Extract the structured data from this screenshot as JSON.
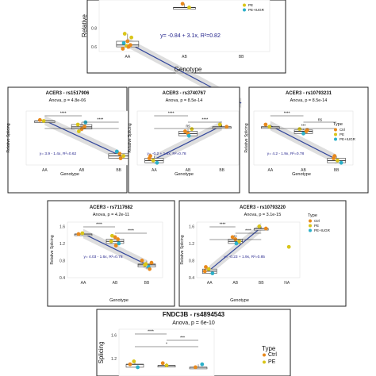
{
  "chart_data": [
    {
      "type": "scatter",
      "title": "",
      "subtitle": "",
      "equation": "y= -0.84 + 3.1x,  R²=0.82",
      "xlabel": "Genotype",
      "ylabel": "Relative",
      "categories": [
        "AA",
        "AB",
        "BB"
      ],
      "yticks": [
        "0.6",
        "0.8"
      ],
      "ylim": [
        0.55,
        1.1
      ],
      "legend": {
        "position": "right",
        "title": "",
        "entries": [
          "PE",
          "PE+IUGR"
        ]
      },
      "boxes": [
        {
          "category": "AA",
          "q1": 0.59,
          "median": 0.62,
          "q3": 0.67,
          "whisker_low": 0.58,
          "whisker_high": 0.72
        }
      ],
      "trend": {
        "from": [
          "AA",
          0.63
        ],
        "to": [
          "AB",
          1.07
        ]
      },
      "points": [
        {
          "x": "AA",
          "y": 0.58,
          "type": "Ctrl"
        },
        {
          "x": "AA",
          "y": 0.61,
          "type": "PE"
        },
        {
          "x": "AA",
          "y": 0.62,
          "type": "Ctrl"
        },
        {
          "x": "AA",
          "y": 0.64,
          "type": "PE+IUGR"
        },
        {
          "x": "AA",
          "y": 0.66,
          "type": "Ctrl"
        },
        {
          "x": "AA",
          "y": 0.7,
          "type": "PE"
        },
        {
          "x": "AA",
          "y": 0.74,
          "type": "PE"
        },
        {
          "x": "AA",
          "y": 0.6,
          "type": "Ctrl"
        },
        {
          "x": "AB",
          "y": 1.02,
          "type": "PE"
        },
        {
          "x": "AB",
          "y": 1.06,
          "type": "Ctrl"
        }
      ]
    },
    {
      "type": "scatter",
      "title": "ACER3 - rs1517906",
      "subtitle": "Anova, p = 4.8e-06",
      "equation": "y= 3.9 - 1.4x,  R²=0.62",
      "xlabel": "Genotype",
      "ylabel": "Relative Splicing",
      "categories": [
        "AA",
        "AB",
        "BB"
      ],
      "significance": [
        "****",
        "****",
        "**"
      ],
      "points": [
        {
          "x": "AA",
          "y": 1.4,
          "type": "Ctrl"
        },
        {
          "x": "AA",
          "y": 1.38,
          "type": "PE"
        },
        {
          "x": "AB",
          "y": 1.25,
          "type": "Ctrl"
        },
        {
          "x": "AB",
          "y": 1.3,
          "type": "PE"
        },
        {
          "x": "AB",
          "y": 1.2,
          "type": "Ctrl"
        },
        {
          "x": "AB",
          "y": 1.35,
          "type": "PE+IUGR"
        },
        {
          "x": "AB",
          "y": 1.15,
          "type": "PE"
        },
        {
          "x": "BB",
          "y": 0.65,
          "type": "Ctrl"
        },
        {
          "x": "BB",
          "y": 0.6,
          "type": "PE"
        },
        {
          "x": "BB",
          "y": 0.7,
          "type": "PE+IUGR"
        },
        {
          "x": "BB",
          "y": 0.55,
          "type": "Ctrl"
        }
      ]
    },
    {
      "type": "scatter",
      "title": "ACER3 - rs3740767",
      "subtitle": "Anova, p = 8.5e-14",
      "equation": "y= -0.2 + 1.6x,  R²=0.78",
      "xlabel": "Genotype",
      "ylabel": "Relative Splicing",
      "categories": [
        "AA",
        "AB",
        "BB"
      ],
      "significance": [
        "****",
        "****",
        "ns"
      ],
      "points": [
        {
          "x": "AA",
          "y": 0.55,
          "type": "Ctrl"
        },
        {
          "x": "AA",
          "y": 0.5,
          "type": "PE"
        },
        {
          "x": "AA",
          "y": 0.45,
          "type": "PE+IUGR"
        },
        {
          "x": "AA",
          "y": 0.6,
          "type": "Ctrl"
        },
        {
          "x": "AB",
          "y": 1.1,
          "type": "Ctrl"
        },
        {
          "x": "AB",
          "y": 1.2,
          "type": "PE"
        },
        {
          "x": "AB",
          "y": 1.15,
          "type": "Ctrl"
        },
        {
          "x": "AB",
          "y": 1.05,
          "type": "PE+IUGR"
        },
        {
          "x": "BB",
          "y": 1.25,
          "type": "Ctrl"
        },
        {
          "x": "BB",
          "y": 1.3,
          "type": "PE"
        }
      ]
    },
    {
      "type": "scatter",
      "title": "ACER3 - rs10793231",
      "subtitle": "Anova, p = 8.5e-14",
      "equation": "y= 4.2 - 1.9x,  R²=0.78",
      "xlabel": "Genotype",
      "ylabel": "Relative Splicing",
      "categories": [
        "AA",
        "AB",
        "BB"
      ],
      "significance": [
        "****",
        "ns",
        "***"
      ],
      "legend": {
        "position": "right",
        "title": "Type",
        "entries": [
          "Ctrl",
          "PE",
          "PE+IUGR"
        ]
      },
      "points": [
        {
          "x": "AA",
          "y": 1.3,
          "type": "Ctrl"
        },
        {
          "x": "AA",
          "y": 1.25,
          "type": "PE"
        },
        {
          "x": "AB",
          "y": 1.15,
          "type": "Ctrl"
        },
        {
          "x": "AB",
          "y": 1.2,
          "type": "PE"
        },
        {
          "x": "AB",
          "y": 1.1,
          "type": "PE+IUGR"
        },
        {
          "x": "AB",
          "y": 1.18,
          "type": "Ctrl"
        },
        {
          "x": "BB",
          "y": 0.55,
          "type": "Ctrl"
        },
        {
          "x": "BB",
          "y": 0.5,
          "type": "PE"
        },
        {
          "x": "BB",
          "y": 0.45,
          "type": "PE+IUGR"
        },
        {
          "x": "BB",
          "y": 0.6,
          "type": "Ctrl"
        }
      ]
    },
    {
      "type": "scatter",
      "title": "ACER3 - rs7117682",
      "subtitle": "Anova, p = 4.2e-11",
      "equation": "y= 4.03 - 1.6x,  R²=0.78",
      "xlabel": "Genotype",
      "ylabel": "Relative Splicing",
      "categories": [
        "AA",
        "AB",
        "BB"
      ],
      "yticks": [
        "0.4",
        "0.8",
        "1.2",
        "1.6"
      ],
      "ylim": [
        0.4,
        1.7
      ],
      "significance": [
        "****",
        "****"
      ],
      "points": [
        {
          "x": "AA",
          "y": 1.42,
          "type": "Ctrl"
        },
        {
          "x": "AA",
          "y": 1.44,
          "type": "PE"
        },
        {
          "x": "AB",
          "y": 1.3,
          "type": "Ctrl"
        },
        {
          "x": "AB",
          "y": 1.25,
          "type": "PE"
        },
        {
          "x": "AB",
          "y": 1.35,
          "type": "Ctrl"
        },
        {
          "x": "AB",
          "y": 1.2,
          "type": "PE+IUGR"
        },
        {
          "x": "AB",
          "y": 1.38,
          "type": "PE"
        },
        {
          "x": "AB",
          "y": 1.15,
          "type": "Ctrl"
        },
        {
          "x": "BB",
          "y": 0.75,
          "type": "Ctrl"
        },
        {
          "x": "BB",
          "y": 0.7,
          "type": "PE"
        },
        {
          "x": "BB",
          "y": 0.65,
          "type": "PE+IUGR"
        },
        {
          "x": "BB",
          "y": 0.8,
          "type": "Ctrl"
        },
        {
          "x": "BB",
          "y": 0.72,
          "type": "PE"
        },
        {
          "x": "BB",
          "y": 0.6,
          "type": "Ctrl"
        }
      ]
    },
    {
      "type": "scatter",
      "title": "ACER3 - rs10793220",
      "subtitle": "Anova, p = 3.1e-15",
      "equation": "y= -0.23 + 1.9x,  R²=0.85",
      "xlabel": "Genotype",
      "ylabel": "Relative Splicing",
      "categories": [
        "AA",
        "AB",
        "BB",
        "NA"
      ],
      "yticks": [
        "0.4",
        "0.8",
        "1.2",
        "1.6"
      ],
      "ylim": [
        0.4,
        1.7
      ],
      "significance": [
        "****",
        "****",
        "**"
      ],
      "legend": {
        "position": "right",
        "title": "Type",
        "entries": [
          "Ctrl",
          "PE",
          "PE+IUGR"
        ]
      },
      "points": [
        {
          "x": "AA",
          "y": 0.55,
          "type": "Ctrl"
        },
        {
          "x": "AA",
          "y": 0.6,
          "type": "PE"
        },
        {
          "x": "AA",
          "y": 0.5,
          "type": "PE+IUGR"
        },
        {
          "x": "AA",
          "y": 0.65,
          "type": "Ctrl"
        },
        {
          "x": "AB",
          "y": 1.3,
          "type": "Ctrl"
        },
        {
          "x": "AB",
          "y": 1.25,
          "type": "PE"
        },
        {
          "x": "AB",
          "y": 1.35,
          "type": "Ctrl"
        },
        {
          "x": "AB",
          "y": 1.2,
          "type": "PE+IUGR"
        },
        {
          "x": "BB",
          "y": 1.55,
          "type": "Ctrl"
        },
        {
          "x": "BB",
          "y": 1.6,
          "type": "PE"
        },
        {
          "x": "NA",
          "y": 1.12,
          "type": "PE"
        }
      ]
    },
    {
      "type": "scatter",
      "title": "FNDC3B - rs4894543",
      "subtitle": "Anova, p = 6e-10",
      "equation": "",
      "xlabel": "",
      "ylabel": "Splicing",
      "categories": [
        "AA",
        "AB",
        "BB"
      ],
      "yticks": [
        "1.2",
        "1.6"
      ],
      "significance": [
        "****",
        "***",
        "*"
      ],
      "legend": {
        "position": "right",
        "title": "Type",
        "entries": [
          "Ctrl",
          "PE"
        ]
      },
      "points": [
        {
          "x": "AA",
          "y": 1.1,
          "type": "Ctrl"
        },
        {
          "x": "AA",
          "y": 1.15,
          "type": "PE"
        },
        {
          "x": "AA",
          "y": 1.05,
          "type": "PE+IUGR"
        },
        {
          "x": "AB",
          "y": 1.12,
          "type": "Ctrl"
        },
        {
          "x": "AB",
          "y": 1.08,
          "type": "PE"
        },
        {
          "x": "BB",
          "y": 1.1,
          "type": "PE+IUGR"
        },
        {
          "x": "BB",
          "y": 1.05,
          "type": "Ctrl"
        }
      ]
    }
  ],
  "colors": {
    "Ctrl": "#e8891c",
    "PE": "#d9c51a",
    "PE+IUGR": "#2bb0c9",
    "equation": "#20208a",
    "trend": "#34489c",
    "band": "#c8c8c8"
  }
}
